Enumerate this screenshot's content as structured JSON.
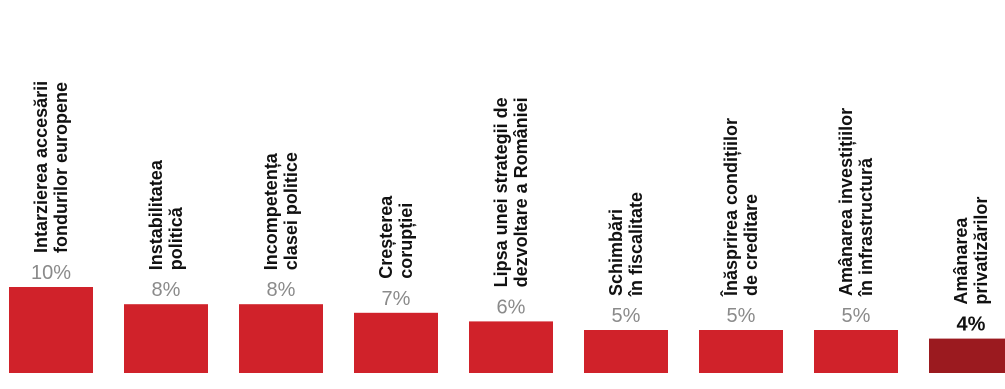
{
  "chart_data": {
    "type": "bar",
    "categories": [
      [
        "Intarzierea accesării",
        "fondurilor europene"
      ],
      [
        "Instabilitatea",
        "politică"
      ],
      [
        "Incompetența",
        "clasei politice"
      ],
      [
        "Creșterea",
        "corupției"
      ],
      [
        "Lipsa unei strategii de",
        "dezvoltare a României"
      ],
      [
        "Schimbări",
        "în fiscalitate"
      ],
      [
        "Înăsprirea condițiilor",
        "de creditare"
      ],
      [
        "Amânarea investițiilor",
        "în infrastructură"
      ],
      [
        "Amânarea",
        "privatizărilor"
      ]
    ],
    "values": [
      10,
      8,
      8,
      7,
      6,
      5,
      5,
      5,
      4
    ],
    "value_labels": [
      "10%",
      "8%",
      "8%",
      "7%",
      "6%",
      "5%",
      "5%",
      "5%",
      "4%"
    ],
    "highlight_index": 8,
    "ylim": [
      0,
      10
    ],
    "grid": false,
    "colors": {
      "bar": "#d0222a",
      "bar_highlight": "#9b1a1f",
      "value_text": "#8a8a8a",
      "value_text_highlight": "#111111",
      "label_text": "#111111"
    }
  }
}
